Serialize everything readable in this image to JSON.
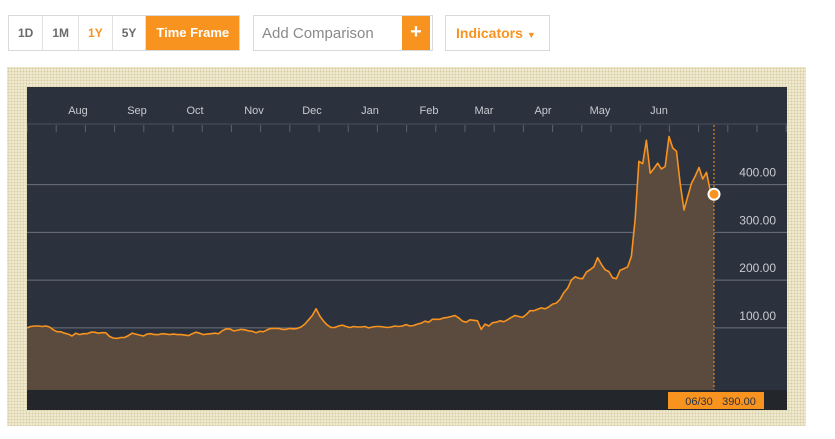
{
  "toolbar": {
    "ranges": [
      "1D",
      "1M",
      "1Y",
      "5Y"
    ],
    "active_range": "1Y",
    "timeframe_label": "Time Frame",
    "comparison_placeholder": "Add Comparison",
    "add_symbol": "+",
    "indicators_label": "Indicators",
    "indicators_caret": "▼"
  },
  "colors": {
    "accent": "#f7931e",
    "plot_bg": "#2b323d",
    "bottom_bar": "#23272c",
    "area_fill": "#5b4a3e",
    "grid": "#6c717a",
    "axis_text": "#c8cbd0"
  },
  "chart_data": {
    "type": "area",
    "x_tick_labels": [
      "Aug",
      "Sep",
      "Oct",
      "Nov",
      "Dec",
      "Jan",
      "Feb",
      "Mar",
      "Apr",
      "May",
      "Jun"
    ],
    "y_tick_labels": [
      "100.00",
      "200.00",
      "300.00",
      "400.00"
    ],
    "y_ticks": [
      100,
      200,
      300,
      400
    ],
    "ylim": [
      -30,
      525
    ],
    "grid": true,
    "cursor_date": "06/30",
    "cursor_value_label": "390.00",
    "last_value": 380,
    "series": [
      {
        "x": [
          0,
          2,
          4,
          6,
          8,
          10,
          12,
          14,
          16,
          18,
          20,
          22,
          24,
          26,
          28,
          30,
          32,
          34,
          36,
          38,
          40,
          42,
          44,
          46,
          48,
          50,
          52,
          54,
          56,
          58,
          60,
          62,
          64,
          66,
          68,
          70,
          72,
          74,
          76,
          78,
          80,
          82,
          84,
          86,
          88,
          90,
          92,
          94,
          96,
          98,
          100,
          102,
          104,
          106,
          108,
          110,
          112,
          114,
          116,
          118,
          120,
          122,
          124,
          126,
          128,
          130,
          132,
          134,
          136,
          138,
          140,
          142,
          144,
          146,
          148,
          150,
          152,
          154,
          156,
          158,
          160,
          162,
          164,
          166,
          168,
          170,
          172,
          174,
          176,
          178,
          180,
          182,
          184,
          186,
          188,
          190,
          192,
          194,
          196,
          198,
          200,
          202,
          204,
          206,
          208,
          210,
          212,
          214,
          216,
          218,
          220,
          222,
          224,
          226,
          228,
          230,
          232,
          234,
          236,
          238,
          240,
          242,
          244,
          246,
          248,
          250,
          252,
          254,
          256,
          258,
          260,
          262,
          264,
          266,
          268,
          270,
          272,
          274,
          276,
          278,
          280,
          282,
          284,
          286,
          288,
          290,
          292,
          294,
          296,
          298,
          300,
          302,
          304,
          306,
          308,
          310,
          312,
          314,
          316,
          318,
          320,
          322,
          324,
          326,
          328,
          330,
          332,
          334,
          336,
          338,
          340,
          342,
          344,
          346,
          348,
          350,
          352,
          354,
          356,
          358,
          360,
          362,
          364,
          366
        ],
        "values": [
          100,
          103,
          104,
          104,
          103,
          104,
          102,
          96,
          92,
          92,
          89,
          87,
          83,
          89,
          86,
          88,
          88,
          91,
          91,
          89,
          90,
          90,
          82,
          79,
          78,
          80,
          80,
          84,
          89,
          87,
          85,
          83,
          87,
          88,
          86,
          86,
          88,
          87,
          86,
          87,
          86,
          86,
          85,
          84,
          88,
          91,
          89,
          86,
          87,
          88,
          89,
          88,
          94,
          98,
          98,
          94,
          95,
          97,
          96,
          94,
          93,
          90,
          93,
          92,
          96,
          99,
          99,
          99,
          97,
          97,
          99,
          98,
          99,
          102,
          108,
          117,
          126,
          140,
          125,
          114,
          106,
          101,
          101,
          104,
          106,
          103,
          101,
          103,
          102,
          102,
          103,
          100,
          102,
          103,
          103,
          102,
          101,
          102,
          104,
          103,
          104,
          107,
          104,
          105,
          108,
          110,
          114,
          112,
          118,
          118,
          118,
          121,
          122,
          124,
          126,
          121,
          114,
          112,
          117,
          116,
          115,
          97,
          108,
          104,
          111,
          112,
          115,
          113,
          117,
          122,
          126,
          124,
          122,
          128,
          136,
          136,
          139,
          142,
          140,
          144,
          150,
          152,
          160,
          174,
          183,
          200,
          207,
          204,
          203,
          217,
          222,
          228,
          247,
          233,
          222,
          218,
          205,
          203,
          221,
          224,
          228,
          250,
          329,
          449,
          444,
          493,
          424,
          434,
          445,
          433,
          438,
          501,
          477,
          470,
          402,
          347,
          375,
          403,
          418,
          436,
          412,
          426,
          388,
          380
        ]
      }
    ]
  }
}
